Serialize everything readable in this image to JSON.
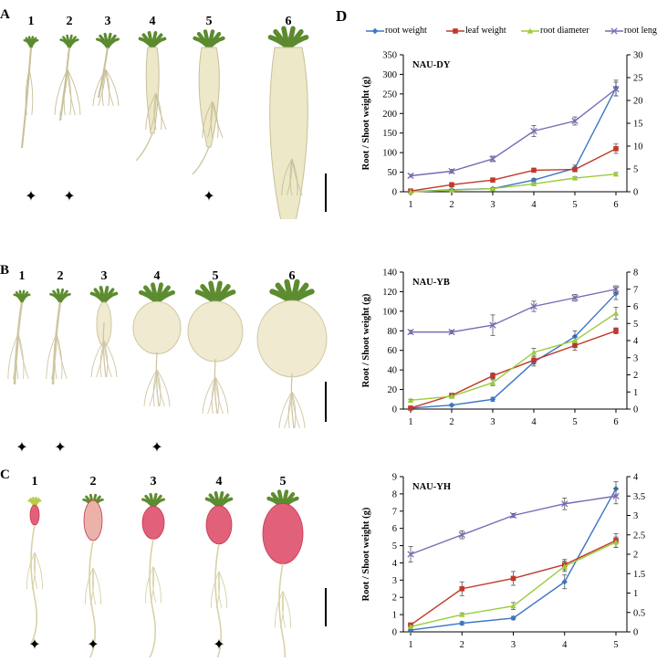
{
  "figure": {
    "panel_d_letter": "D",
    "panels_left": [
      {
        "letter": "A",
        "stages": [
          "1",
          "2",
          "3",
          "4",
          "5",
          "6"
        ],
        "markers": [
          "+",
          "+",
          "",
          "",
          "+",
          ""
        ],
        "type": "long_white",
        "colors": {
          "root": "#ece8c8",
          "root_dark": "#c8c09a",
          "leaf": "#5b8a2f"
        }
      },
      {
        "letter": "B",
        "stages": [
          "1",
          "2",
          "3",
          "4",
          "5",
          "6"
        ],
        "markers": [
          "+",
          "+",
          "",
          "+",
          "",
          ""
        ],
        "type": "round_white",
        "colors": {
          "root": "#efead0",
          "root_dark": "#cfc7a3",
          "leaf": "#5d8c30"
        }
      },
      {
        "letter": "C",
        "stages": [
          "1",
          "2",
          "3",
          "4",
          "5"
        ],
        "markers": [
          "+",
          "+",
          "",
          "+",
          ""
        ],
        "type": "red",
        "colors": {
          "root": "#e2617a",
          "root_dark": "#c8344f",
          "leaf": "#5d8c30"
        }
      }
    ],
    "legend": [
      {
        "label": "root weight",
        "color": "#3a76c4",
        "marker": "diamond"
      },
      {
        "label": "leaf weight",
        "color": "#c0392b",
        "marker": "square"
      },
      {
        "label": "root diameter",
        "color": "#9ccc3c",
        "marker": "triangle"
      },
      {
        "label": "root length",
        "color": "#7b68b4",
        "marker": "cross"
      }
    ]
  },
  "chart_data": [
    {
      "type": "line",
      "title": "NAU-DY",
      "ylabel": "Root / Shoot  weight (g)",
      "y2label": "",
      "x": [
        1,
        2,
        3,
        4,
        5,
        6
      ],
      "ylim": [
        0,
        350
      ],
      "yticks": [
        0,
        50,
        100,
        150,
        200,
        250,
        300,
        350
      ],
      "y2lim": [
        0,
        30
      ],
      "y2ticks": [
        0,
        5,
        10,
        15,
        20,
        25,
        30
      ],
      "series": [
        {
          "name": "root weight",
          "axis": "left",
          "values": [
            0,
            5,
            8,
            30,
            60,
            265
          ],
          "err": [
            1,
            2,
            2,
            4,
            8,
            20
          ]
        },
        {
          "name": "leaf weight",
          "axis": "left",
          "values": [
            2,
            18,
            30,
            55,
            57,
            110
          ],
          "err": [
            2,
            3,
            4,
            5,
            6,
            12
          ]
        },
        {
          "name": "root diameter",
          "axis": "left",
          "values": [
            0,
            4,
            8,
            20,
            35,
            45
          ],
          "err": [
            1,
            1,
            2,
            3,
            3,
            4
          ]
        },
        {
          "name": "root length",
          "axis": "right",
          "values": [
            3.5,
            4.5,
            7.2,
            13.3,
            15.5,
            22.5
          ],
          "err": [
            0.3,
            0.4,
            0.6,
            1.2,
            0.9,
            1.5
          ]
        }
      ]
    },
    {
      "type": "line",
      "title": "NAU-YB",
      "ylabel": "Root / Shoot  weight (g)",
      "y2label": "",
      "x": [
        1,
        2,
        3,
        4,
        5,
        6
      ],
      "ylim": [
        0,
        140
      ],
      "yticks": [
        0,
        20,
        40,
        60,
        80,
        100,
        120,
        140
      ],
      "y2lim": [
        0,
        8
      ],
      "y2ticks": [
        0,
        1,
        2,
        3,
        4,
        5,
        6,
        7,
        8
      ],
      "series": [
        {
          "name": "root weight",
          "axis": "left",
          "values": [
            1,
            4,
            10,
            48,
            74,
            118
          ],
          "err": [
            1,
            1,
            2,
            4,
            6,
            6
          ]
        },
        {
          "name": "leaf weight",
          "axis": "left",
          "values": [
            1,
            14,
            34,
            50,
            65,
            80
          ],
          "err": [
            1,
            2,
            3,
            4,
            5,
            3
          ]
        },
        {
          "name": "root diameter",
          "axis": "left",
          "values": [
            9,
            13,
            27,
            58,
            70,
            98
          ],
          "err": [
            1,
            2,
            3,
            4,
            5,
            6
          ]
        },
        {
          "name": "root length",
          "axis": "right",
          "values": [
            4.5,
            4.5,
            4.9,
            6.0,
            6.5,
            7.0
          ],
          "err": [
            0.1,
            0.1,
            0.6,
            0.3,
            0.2,
            0.2
          ]
        }
      ]
    },
    {
      "type": "line",
      "title": "NAU-YH",
      "ylabel": "Root / Shoot  weight (g)",
      "y2label": "",
      "x": [
        1,
        2,
        3,
        4,
        5
      ],
      "ylim": [
        0,
        9
      ],
      "yticks": [
        0,
        1,
        2,
        3,
        4,
        5,
        6,
        7,
        8,
        9
      ],
      "y2lim": [
        0,
        4
      ],
      "y2ticks": [
        0,
        0.5,
        1,
        1.5,
        2,
        2.5,
        3,
        3.5,
        4
      ],
      "series": [
        {
          "name": "root weight",
          "axis": "left",
          "values": [
            0.1,
            0.5,
            0.8,
            2.9,
            8.3
          ],
          "err": [
            0.05,
            0.1,
            0.1,
            0.4,
            0.4
          ]
        },
        {
          "name": "leaf weight",
          "axis": "left",
          "values": [
            0.4,
            2.5,
            3.1,
            3.9,
            5.3
          ],
          "err": [
            0.1,
            0.4,
            0.4,
            0.3,
            0.4
          ]
        },
        {
          "name": "root diameter",
          "axis": "left",
          "values": [
            0.3,
            1.0,
            1.5,
            3.8,
            5.2
          ],
          "err": [
            0.1,
            0.1,
            0.2,
            0.3,
            0.3
          ]
        },
        {
          "name": "root length",
          "axis": "right",
          "values": [
            2.0,
            2.5,
            3.0,
            3.3,
            3.5
          ],
          "err": [
            0.2,
            0.1,
            0.05,
            0.15,
            0.2
          ]
        }
      ]
    }
  ]
}
